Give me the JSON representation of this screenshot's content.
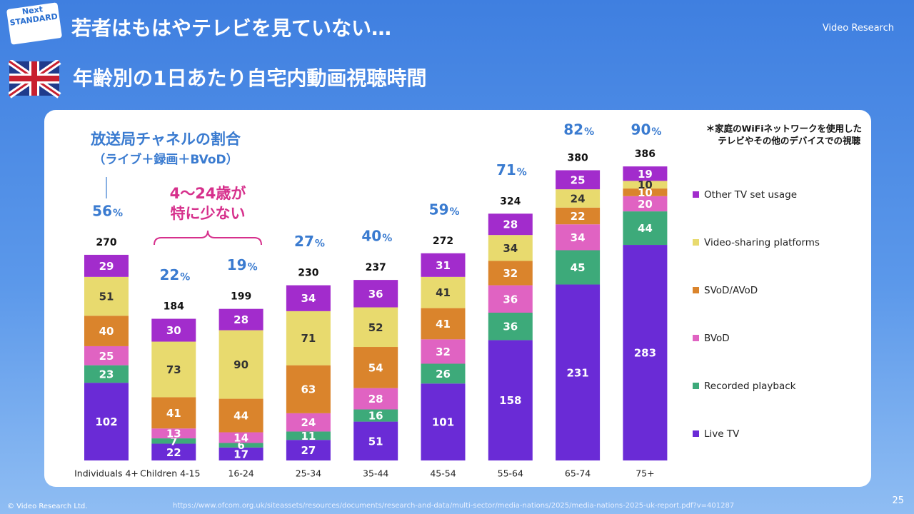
{
  "header": {
    "title": "若者はもはやテレビを見ていない…",
    "subtitle": "年齢別の1日あたり自宅内動画視聴時間",
    "badge_top": "Next",
    "badge_bottom": "STANDARD",
    "logo": "Video Research"
  },
  "chart_data": {
    "type": "stacked_bar",
    "categories": [
      "Individuals 4+",
      "Children 4-15",
      "16-24",
      "25-34",
      "35-44",
      "45-54",
      "55-64",
      "65-74",
      "75+"
    ],
    "series": [
      {
        "name": "Live TV",
        "color": "#6a2bd6",
        "values": [
          102,
          22,
          17,
          27,
          51,
          101,
          158,
          231,
          283
        ]
      },
      {
        "name": "Recorded playback",
        "color": "#3daa7a",
        "values": [
          23,
          7,
          6,
          11,
          16,
          26,
          36,
          45,
          44
        ]
      },
      {
        "name": "BVoD",
        "color": "#e063c2",
        "values": [
          25,
          13,
          14,
          24,
          28,
          32,
          36,
          34,
          20
        ]
      },
      {
        "name": "SVoD/AVoD",
        "color": "#da842c",
        "values": [
          40,
          41,
          44,
          63,
          54,
          41,
          32,
          22,
          10
        ]
      },
      {
        "name": "Video-sharing platforms",
        "color": "#e8da6e",
        "values": [
          51,
          73,
          90,
          71,
          52,
          41,
          34,
          24,
          10
        ]
      },
      {
        "name": "Other TV set usage",
        "color": "#a22ccc",
        "values": [
          29,
          30,
          28,
          34,
          36,
          31,
          28,
          25,
          19
        ]
      }
    ],
    "totals": [
      270,
      184,
      199,
      230,
      237,
      272,
      324,
      380,
      386
    ],
    "shares": [
      56,
      22,
      19,
      27,
      40,
      59,
      71,
      82,
      90
    ],
    "share_unit": "%",
    "share_title": "放送局チャネルの割合",
    "share_subtitle": "（ライブ＋録画＋BVoD）",
    "callout": [
      "4～24歳が",
      "特に少ない"
    ],
    "note": [
      "＊家庭のWiFiネットワークを使用した",
      "テレビやその他のデバイスでの視聴"
    ]
  },
  "footer": {
    "copyright": "© Video Research Ltd.",
    "source": "https://www.ofcom.org.uk/siteassets/resources/documents/research-and-data/multi-sector/media-nations/2025/media-nations-2025-uk-report.pdf?v=401287",
    "page": "25"
  }
}
